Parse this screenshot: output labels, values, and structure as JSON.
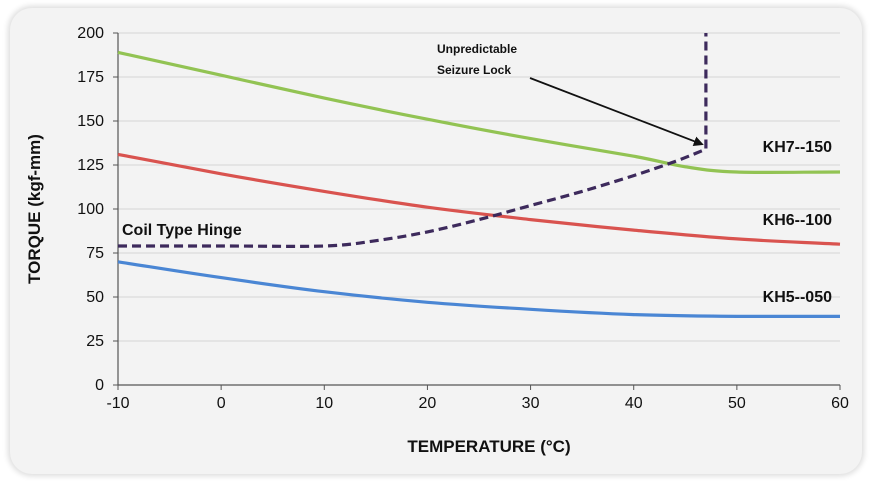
{
  "chart_data": {
    "type": "line",
    "xlabel": "TEMPERATURE (°C)",
    "ylabel": "TORQUE (kgf-mm)",
    "xlim": [
      -10,
      60
    ],
    "ylim": [
      0,
      200
    ],
    "x_ticks": [
      -10,
      0,
      10,
      20,
      30,
      40,
      50,
      60
    ],
    "y_ticks": [
      0,
      25,
      50,
      75,
      100,
      125,
      150,
      175,
      200
    ],
    "grid": "horizontal",
    "series": [
      {
        "name": "KH7--150",
        "color": "#92c353",
        "style": "solid",
        "points": [
          [
            -10,
            189
          ],
          [
            0,
            176
          ],
          [
            10,
            163
          ],
          [
            20,
            151
          ],
          [
            30,
            140
          ],
          [
            40,
            130
          ],
          [
            45,
            124
          ],
          [
            50,
            121
          ],
          [
            60,
            121
          ]
        ]
      },
      {
        "name": "KH6--100",
        "color": "#d9534f",
        "style": "solid",
        "points": [
          [
            -10,
            131
          ],
          [
            0,
            120
          ],
          [
            10,
            110
          ],
          [
            20,
            101
          ],
          [
            30,
            94
          ],
          [
            40,
            88
          ],
          [
            50,
            83
          ],
          [
            60,
            80
          ]
        ]
      },
      {
        "name": "KH5--050",
        "color": "#4a86d4",
        "style": "solid",
        "points": [
          [
            -10,
            70
          ],
          [
            0,
            61
          ],
          [
            10,
            53
          ],
          [
            20,
            47
          ],
          [
            30,
            43
          ],
          [
            40,
            40
          ],
          [
            50,
            39
          ],
          [
            60,
            39
          ]
        ]
      },
      {
        "name": "Coil Type Hinge",
        "color": "#3d2a5c",
        "style": "dashed",
        "points": [
          [
            -10,
            79
          ],
          [
            0,
            79
          ],
          [
            10,
            79
          ],
          [
            15,
            82
          ],
          [
            20,
            87
          ],
          [
            25,
            94
          ],
          [
            30,
            102
          ],
          [
            35,
            110
          ],
          [
            40,
            119
          ],
          [
            44,
            127
          ],
          [
            47,
            134
          ],
          [
            47,
            200
          ]
        ]
      }
    ],
    "annotations": [
      {
        "lines": [
          "Unpredictable",
          "Seizure Lock"
        ],
        "arrow_to": [
          47,
          134
        ]
      }
    ]
  }
}
